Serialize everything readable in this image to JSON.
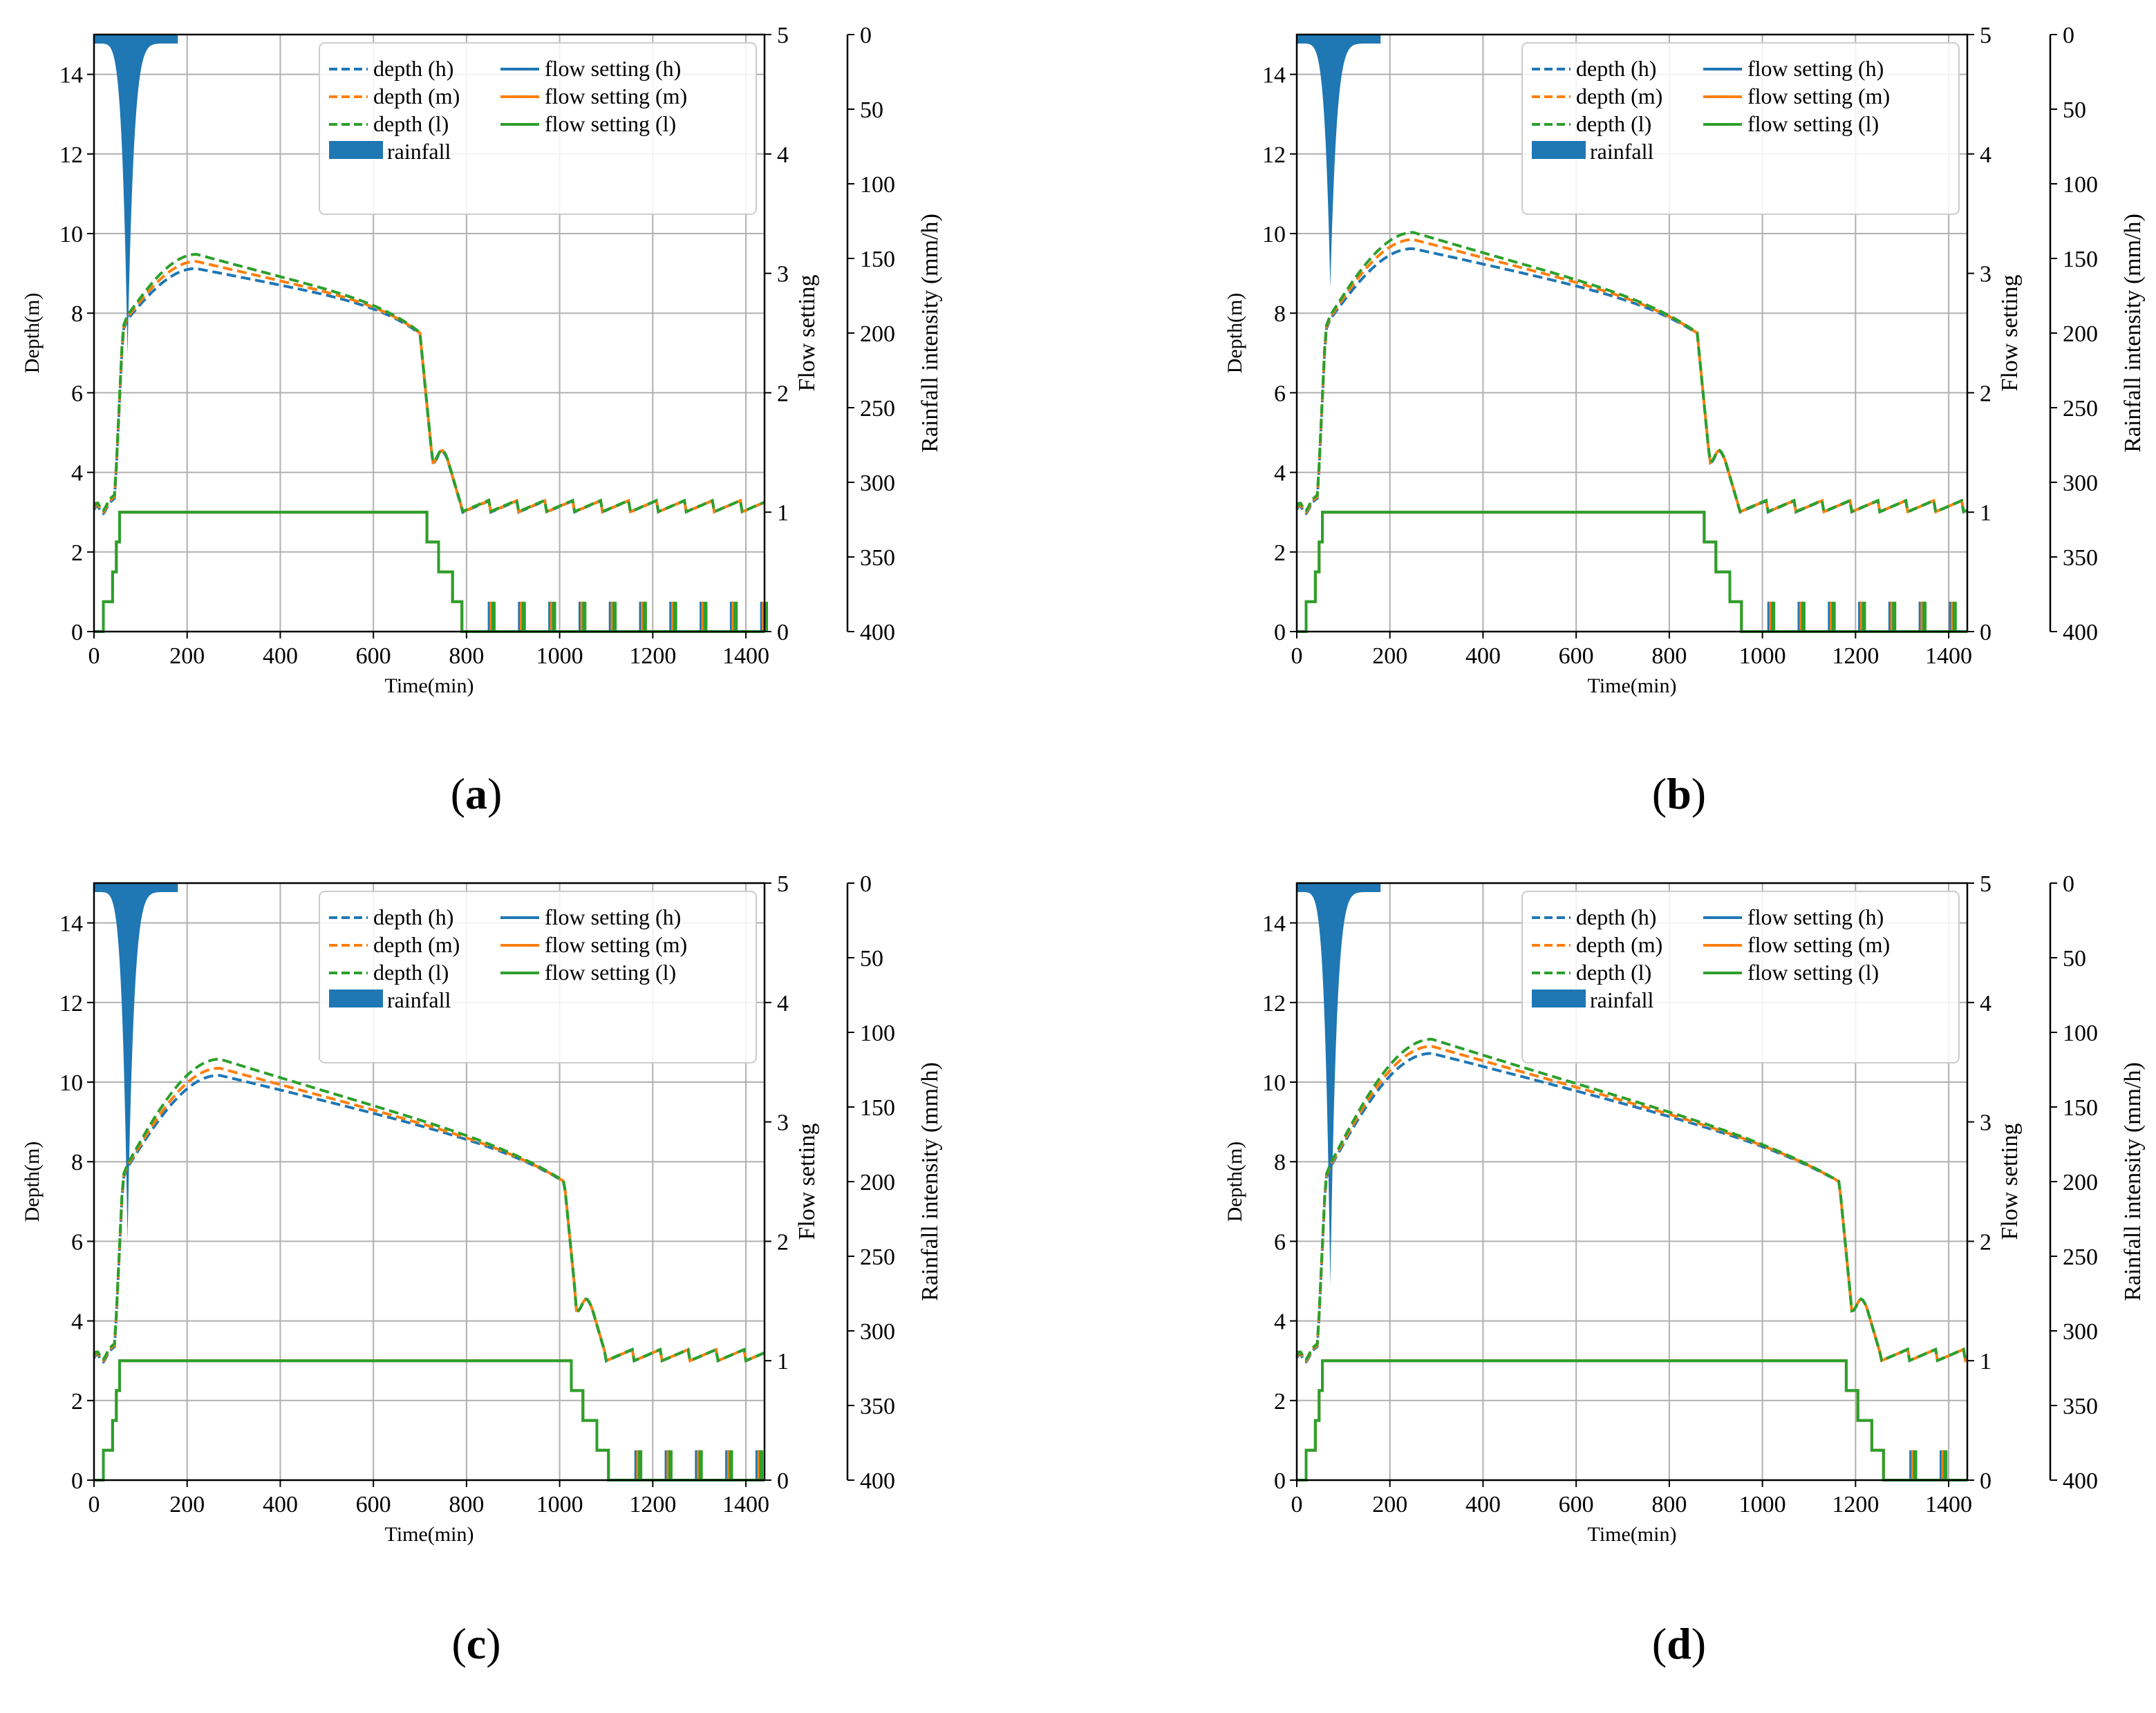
{
  "colors": {
    "h": "#1f77b4",
    "m": "#ff7f0e",
    "l": "#2ca02c",
    "rain": "#1f77b4",
    "grid": "#b0b0b0"
  },
  "legend": [
    "depth (h)",
    "flow setting (h)",
    "depth (m)",
    "flow setting (m)",
    "depth (l)",
    "flow setting (l)",
    "rainfall"
  ],
  "axes": {
    "xlabel": "Time(min)",
    "ylabel_left": "Depth(m)",
    "ylabel_flow": "Flow setting",
    "ylabel_rain": "Rainfall intensity (mm/h)",
    "xticks": [
      "0",
      "200",
      "400",
      "600",
      "800",
      "1000",
      "1200",
      "1400"
    ],
    "yticks_left": [
      "0",
      "2",
      "4",
      "6",
      "8",
      "10",
      "12",
      "14"
    ],
    "yticks_flow": [
      "0",
      "1",
      "2",
      "3",
      "4",
      "5"
    ],
    "yticks_rain": [
      "0",
      "50",
      "100",
      "150",
      "200",
      "250",
      "300",
      "350",
      "400"
    ]
  },
  "chart_data": [
    {
      "type": "line",
      "label": "a",
      "xlim": [
        0,
        1440
      ],
      "ylim": [
        0,
        15
      ],
      "flow_lim": [
        0,
        5
      ],
      "rain_lim": [
        400,
        0
      ],
      "rain_peak": 215,
      "rain_peak_time": 72,
      "rain_end": 180,
      "depth_peak": {
        "h": 9.2,
        "m": 9.3,
        "l": 9.4
      },
      "peak_time": 220,
      "depth_at_drop": 7.5,
      "drop_time": 700,
      "flow_step_time": 715,
      "flow_zero_time": 790,
      "zigzag_end": 1440
    },
    {
      "type": "line",
      "label": "b",
      "xlim": [
        0,
        1440
      ],
      "ylim": [
        0,
        15
      ],
      "flow_lim": [
        0,
        5
      ],
      "rain_lim": [
        400,
        0
      ],
      "rain_peak": 170,
      "rain_peak_time": 72,
      "rain_end": 180,
      "depth_peak": {
        "h": 9.7,
        "m": 9.85,
        "l": 9.95
      },
      "peak_time": 250,
      "depth_at_drop": 7.6,
      "drop_time": 860,
      "flow_step_time": 875,
      "flow_zero_time": 955,
      "zigzag_end": 1440
    },
    {
      "type": "line",
      "label": "c",
      "xlim": [
        0,
        1440
      ],
      "ylim": [
        0,
        15
      ],
      "flow_lim": [
        0,
        5
      ],
      "rain_lim": [
        400,
        0
      ],
      "rain_peak": 240,
      "rain_peak_time": 72,
      "rain_end": 180,
      "depth_peak": {
        "h": 10.25,
        "m": 10.35,
        "l": 10.5
      },
      "peak_time": 270,
      "depth_at_drop": 7.6,
      "drop_time": 1010,
      "flow_step_time": 1025,
      "flow_zero_time": 1105,
      "zigzag_end": 1440
    },
    {
      "type": "line",
      "label": "d",
      "xlim": [
        0,
        1440
      ],
      "ylim": [
        0,
        15
      ],
      "flow_lim": [
        0,
        5
      ],
      "rain_lim": [
        400,
        0
      ],
      "rain_peak": 270,
      "rain_peak_time": 72,
      "rain_end": 180,
      "depth_peak": {
        "h": 10.8,
        "m": 10.9,
        "l": 11.0
      },
      "peak_time": 290,
      "depth_at_drop": 7.5,
      "drop_time": 1165,
      "flow_step_time": 1180,
      "flow_zero_time": 1260,
      "zigzag_end": 1440
    }
  ]
}
